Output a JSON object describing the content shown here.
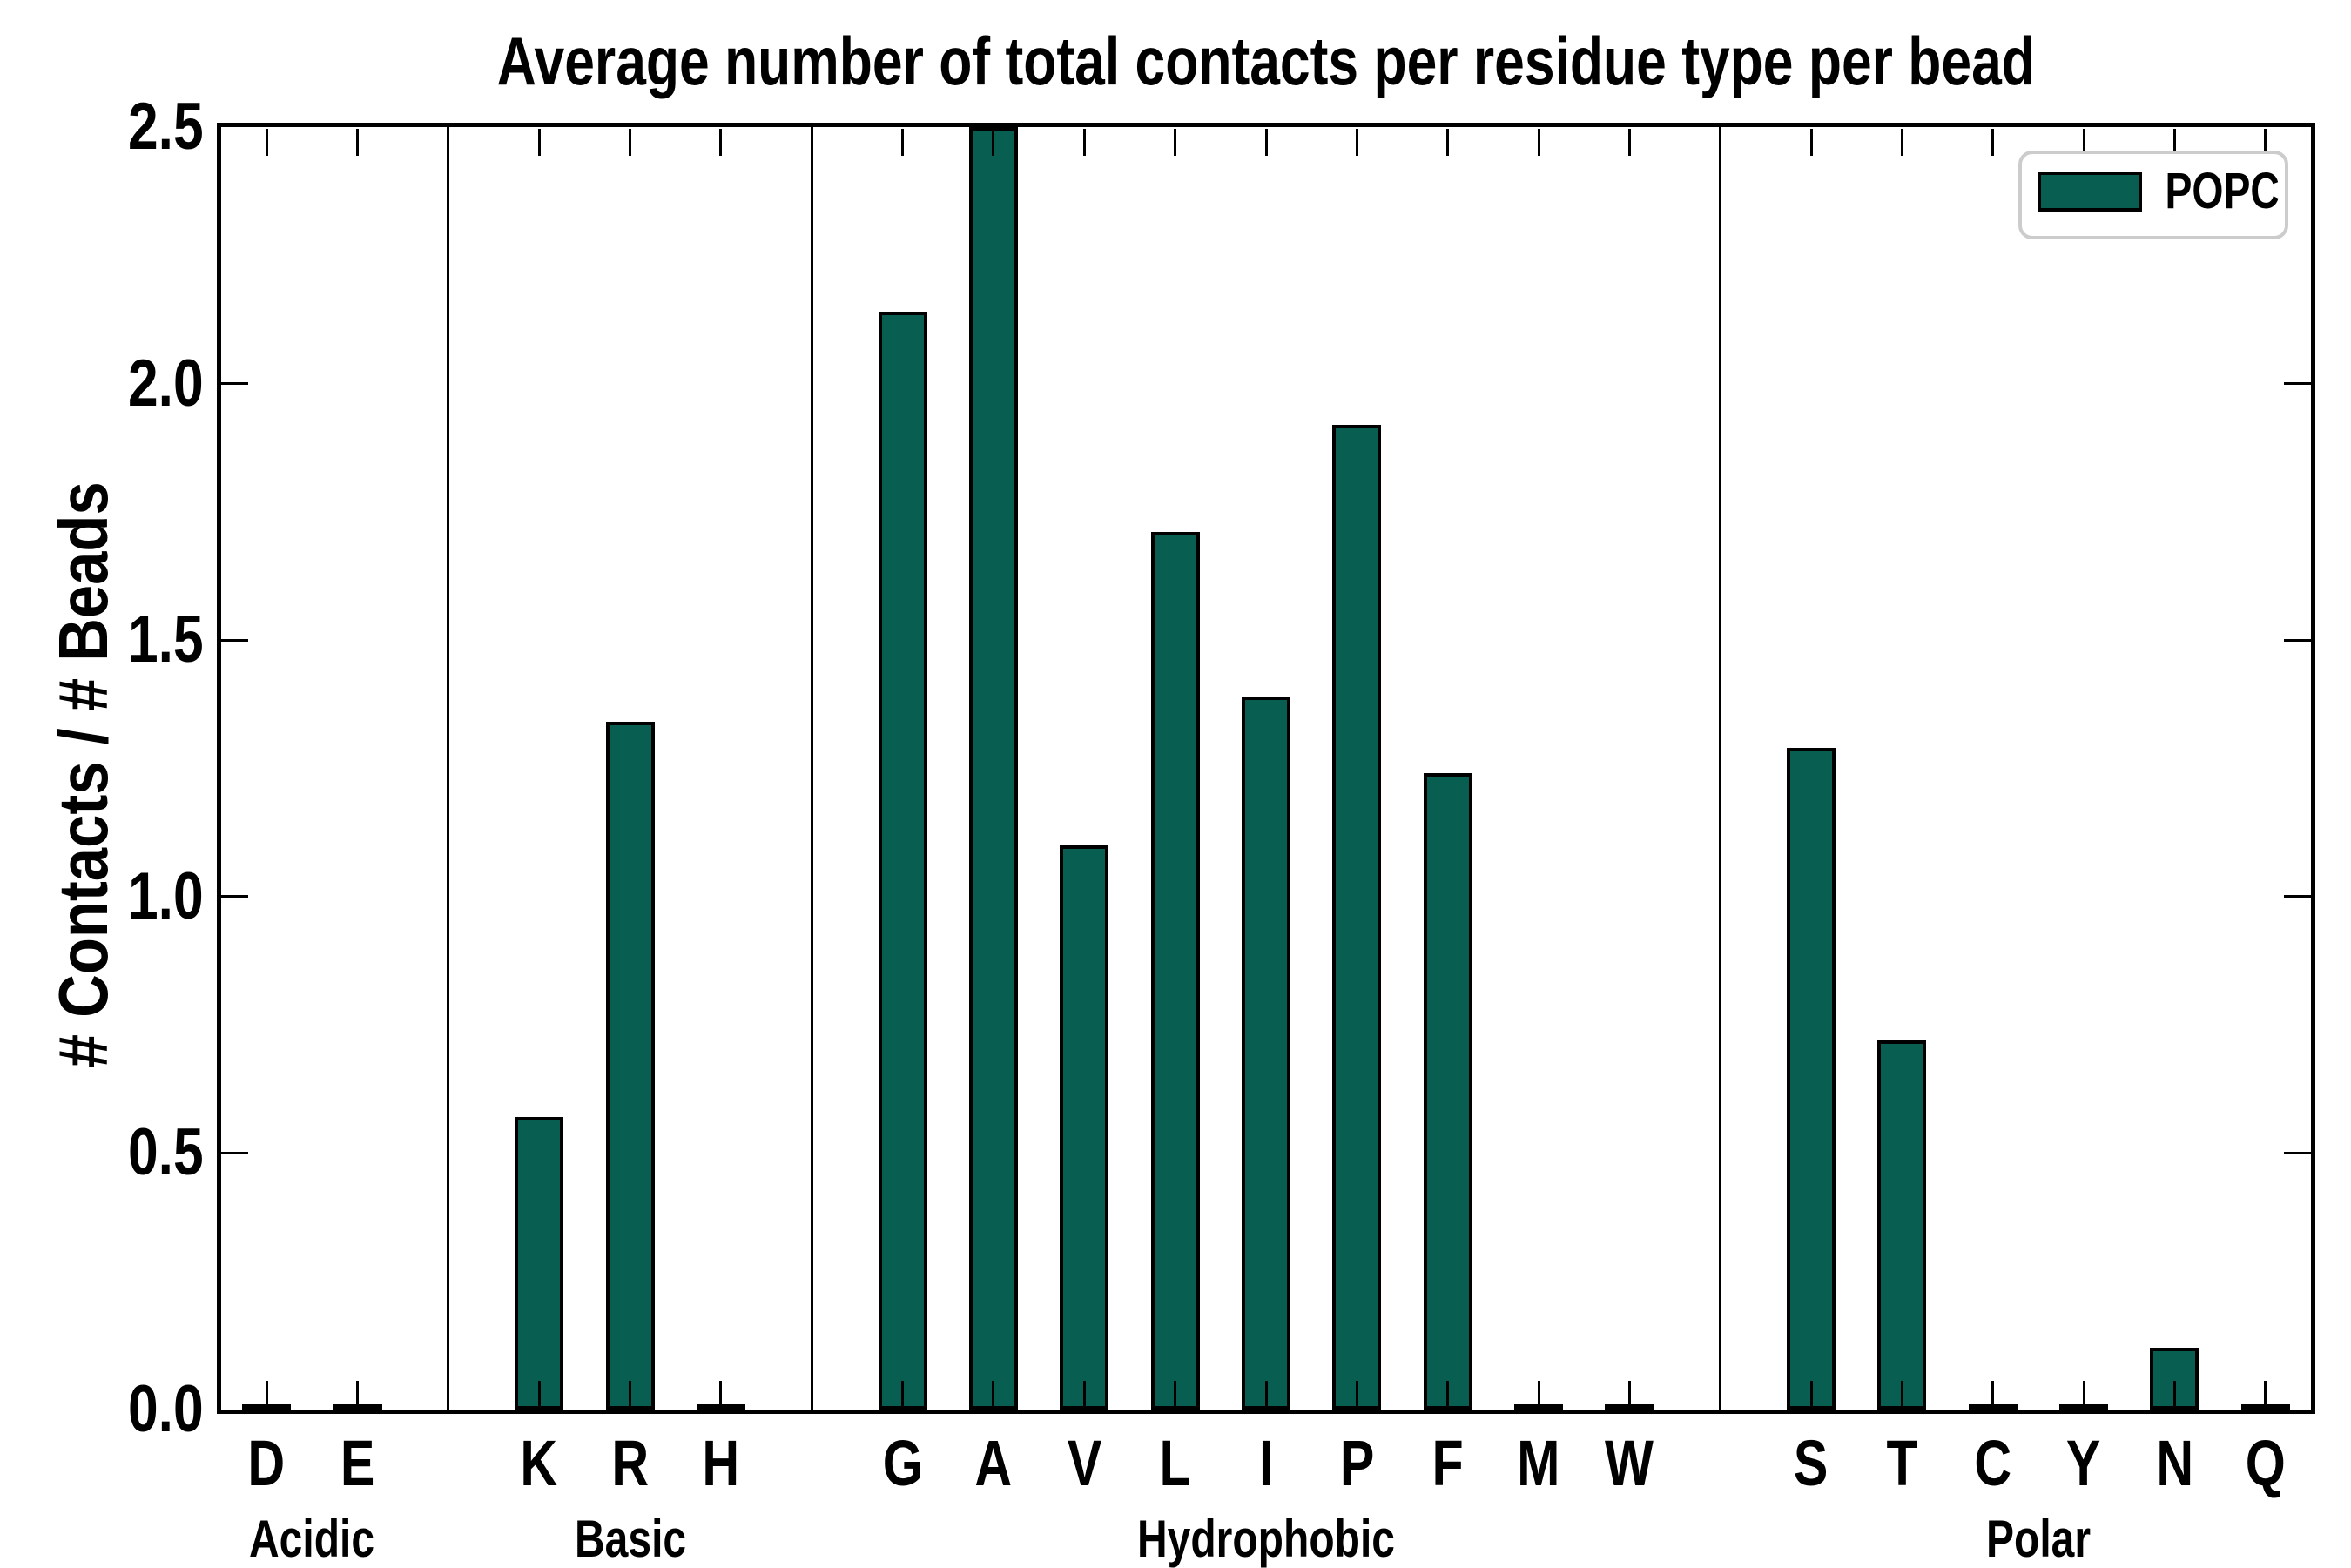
{
  "figure": {
    "title": "Average number of total contacts per residue type per bead",
    "ylabel": "# Contacts / # Beads",
    "background_color": "#ffffff",
    "text_color": "#000000"
  },
  "legend": {
    "label": "POPC",
    "swatch_color": "#075e51",
    "swatch_border_color": "#000000",
    "box_border_color": "#cccccc",
    "position": "upper-right"
  },
  "chart_data": {
    "type": "bar",
    "title": "Average number of total contacts per residue type per bead",
    "xlabel": "",
    "ylabel": "# Contacts / # Beads",
    "ylim": [
      0,
      2.5
    ],
    "ytick_labels": [
      "0.0",
      "0.5",
      "1.0",
      "1.5",
      "2.0",
      "2.5"
    ],
    "grid": false,
    "legend_position": "upper right",
    "series_name": "POPC",
    "bar_color": "#075e51",
    "bar_edge_color": "#000000",
    "groups": [
      {
        "label": "Acidic",
        "categories": [
          "D",
          "E"
        ],
        "values": [
          0.005,
          0.005
        ]
      },
      {
        "label": "Basic",
        "categories": [
          "K",
          "R",
          "H"
        ],
        "values": [
          0.57,
          1.34,
          0.005
        ]
      },
      {
        "label": "Hydrophobic",
        "categories": [
          "G",
          "A",
          "V",
          "L",
          "I",
          "P",
          "F",
          "M",
          "W"
        ],
        "values": [
          2.14,
          2.5,
          1.1,
          1.71,
          1.39,
          1.92,
          1.24,
          0.005,
          0.005
        ]
      },
      {
        "label": "Polar",
        "categories": [
          "S",
          "T",
          "C",
          "Y",
          "N",
          "Q"
        ],
        "values": [
          1.29,
          0.72,
          0.005,
          0.005,
          0.12,
          0.005
        ]
      }
    ],
    "clipped_categories": [
      "A"
    ]
  }
}
